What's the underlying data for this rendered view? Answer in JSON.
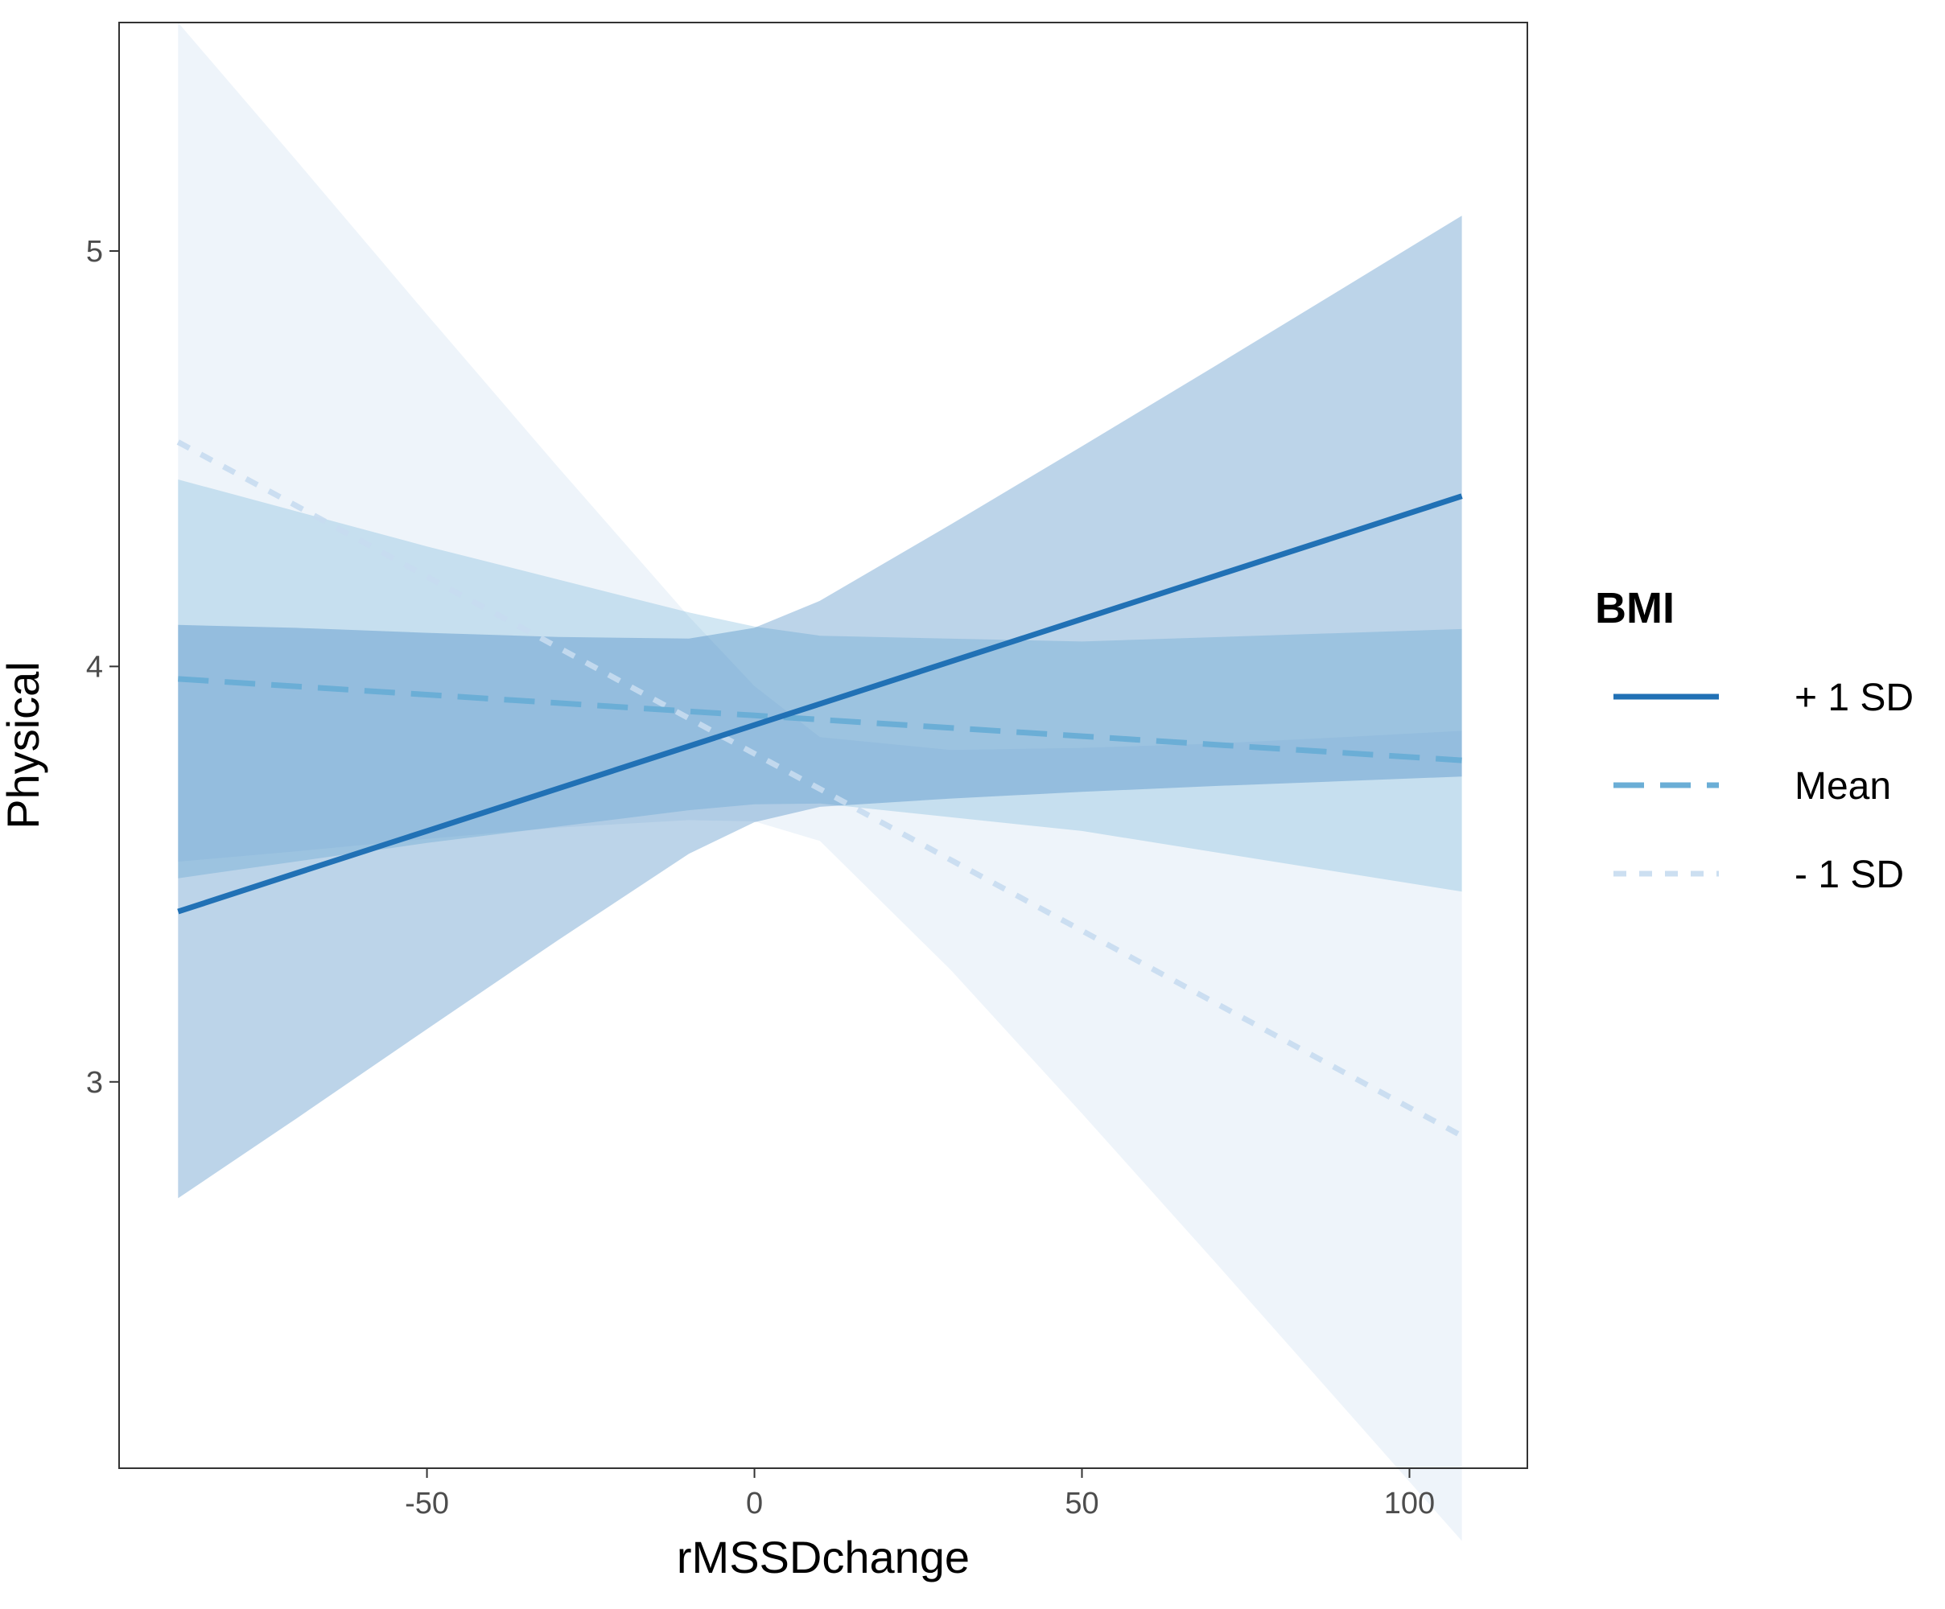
{
  "chart_data": {
    "type": "line",
    "title": "",
    "xlabel": "rMSSDchange",
    "ylabel": "Physical",
    "xlim": [
      -97,
      118
    ],
    "ylim": [
      2.07,
      5.55
    ],
    "x_ticks": [
      -50,
      0,
      50,
      100
    ],
    "x_tick_labels": [
      "-50",
      "0",
      "50",
      "100"
    ],
    "y_ticks": [
      3,
      4,
      5
    ],
    "y_tick_labels": [
      "3",
      "4",
      "5"
    ],
    "grid": false,
    "legend": {
      "title": "BMI",
      "position": "right",
      "entries": [
        "+ 1 SD",
        "Mean",
        "- 1 SD"
      ]
    },
    "series": [
      {
        "name": "- 1 SD",
        "color": "#c6dbef",
        "line_style": "dotted",
        "line_opacity": 0.9,
        "band_opacity": 0.3,
        "x": [
          -88,
          -70,
          -50,
          -30,
          -10,
          0,
          10,
          30,
          50,
          70,
          90,
          108
        ],
        "y": [
          4.54,
          4.387,
          4.216,
          4.046,
          3.875,
          3.79,
          3.705,
          3.534,
          3.364,
          3.193,
          3.023,
          2.87
        ],
        "lower": [
          3.53,
          3.555,
          3.585,
          3.612,
          3.63,
          3.627,
          3.58,
          3.269,
          2.924,
          2.572,
          2.216,
          1.895
        ],
        "upper": [
          5.55,
          5.219,
          4.847,
          4.48,
          4.12,
          3.953,
          3.83,
          3.799,
          3.804,
          3.814,
          3.83,
          3.845
        ]
      },
      {
        "name": "Mean",
        "color": "#6baed6",
        "line_style": "dashed",
        "line_opacity": 1,
        "band_opacity": 0.3,
        "x": [
          -88,
          -50,
          -10,
          0,
          10,
          50,
          108
        ],
        "y": [
          3.97,
          3.932,
          3.892,
          3.882,
          3.872,
          3.832,
          3.774
        ],
        "lower": [
          3.49,
          3.575,
          3.654,
          3.668,
          3.67,
          3.604,
          3.458
        ],
        "upper": [
          4.45,
          4.289,
          4.13,
          4.096,
          4.074,
          4.06,
          4.09
        ]
      },
      {
        "name": "+ 1 SD",
        "color": "#2171b5",
        "line_style": "solid",
        "line_opacity": 1,
        "band_opacity": 0.3,
        "x": [
          -88,
          -70,
          -50,
          -30,
          -10,
          0,
          10,
          30,
          50,
          70,
          90,
          108
        ],
        "y": [
          3.41,
          3.502,
          3.604,
          3.706,
          3.808,
          3.859,
          3.91,
          4.012,
          4.114,
          4.216,
          4.318,
          4.41
        ],
        "lower": [
          2.72,
          2.911,
          3.127,
          3.341,
          3.549,
          3.625,
          3.662,
          3.682,
          3.698,
          3.712,
          3.724,
          3.735
        ],
        "upper": [
          4.1,
          4.093,
          4.081,
          4.071,
          4.067,
          4.093,
          4.158,
          4.342,
          4.53,
          4.72,
          4.912,
          5.085
        ]
      }
    ]
  }
}
